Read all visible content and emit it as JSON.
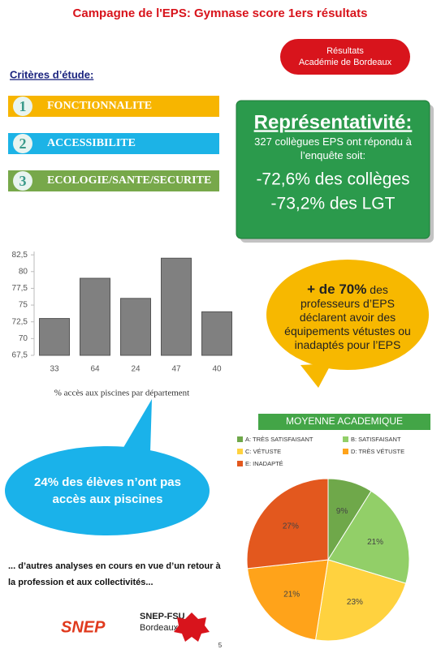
{
  "header": {
    "title": "Campagne de l'EPS: Gymnase score 1ers résultats"
  },
  "badge": {
    "lines": [
      "Résultats",
      "Académie de Bordeaux"
    ]
  },
  "criteria": {
    "title": "Critères d’étude:",
    "items": [
      {
        "number": "1",
        "label": "FONCTIONNALITE"
      },
      {
        "number": "2",
        "label": "ACCESSIBILITE"
      },
      {
        "number": "3",
        "label": "ECOLOGIE/SANTE/SECURITE"
      }
    ]
  },
  "representativite": {
    "title": "Représentativité:",
    "text": "327 collègues EPS ont répondu à l’enquête soit:",
    "lines": [
      "-72,6% des collèges",
      "-73,2% des LGT"
    ]
  },
  "bubble_top": {
    "emphasis": "+ de 70%",
    "text": "des professeurs d’EPS déclarent avoir des équipements vétustes ou inadaptés pour l’EPS"
  },
  "bubble_left": {
    "text": "24% des élèves n’ont pas accès aux piscines"
  },
  "footer": {
    "note": "... d’autres analyses en cours en vue d’un retour à la profession et aux collectivités...",
    "logo1": "SNEP",
    "logo2": "SNEP-FSU",
    "logo2_sub": "Bordeaux",
    "page": "5"
  },
  "chart_data": [
    {
      "type": "bar",
      "categories": [
        "33",
        "64",
        "24",
        "47",
        "40"
      ],
      "values": [
        73,
        79,
        76,
        82,
        74
      ],
      "color": "#808080",
      "ylim": [
        67.5,
        83
      ],
      "yticks": [
        {
          "value": 67.5,
          "label": "67,5"
        },
        70,
        {
          "value": 72.5,
          "label": "72,5"
        },
        75,
        {
          "value": 77.5,
          "label": "77,5"
        },
        80,
        {
          "value": 82.5,
          "label": "82,5"
        }
      ],
      "xlabel": "% accès aux piscines par département"
    },
    {
      "type": "pie",
      "title": "MOYENNE ACADEMIQUE",
      "categories": [
        "A: TRÈS SATISFAISANT",
        "B: SATISFAISANT",
        "C: VÉTUSTE",
        "D: TRÈS VÉTUSTE",
        "E: INADAPTÉ"
      ],
      "values": [
        9,
        21,
        23,
        21,
        27
      ],
      "value_labels": [
        "9%",
        "21%",
        "23%",
        "21%",
        "27%"
      ],
      "colors": [
        "#6fa84a",
        "#92cf68",
        "#ffd23f",
        "#ffa31a",
        "#e3581e"
      ]
    }
  ]
}
